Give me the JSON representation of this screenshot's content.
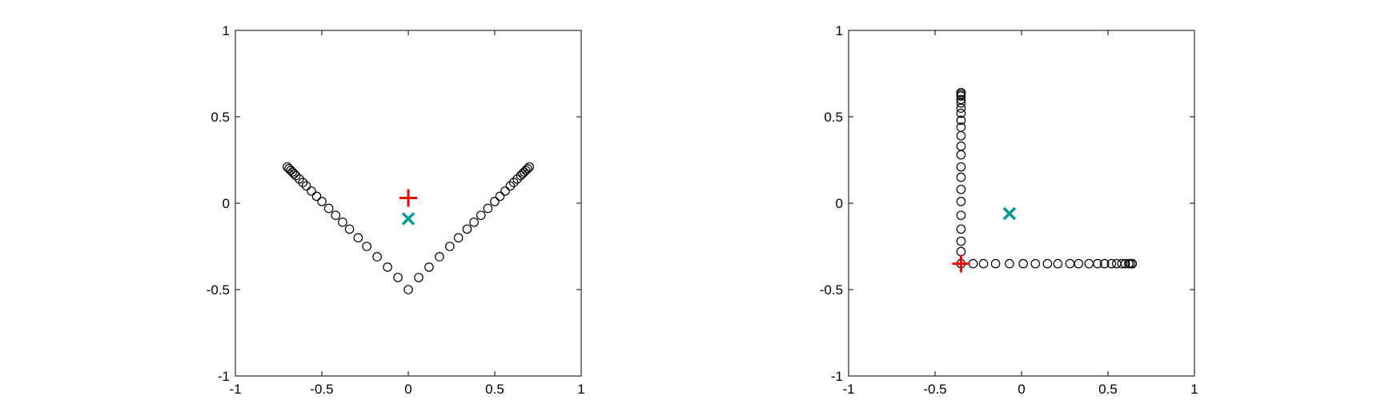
{
  "chart_data": [
    {
      "type": "scatter",
      "xlim": [
        -1,
        1
      ],
      "ylim": [
        -1,
        1
      ],
      "xticks": [
        -1,
        -0.5,
        0,
        0.5,
        1
      ],
      "yticks": [
        -1,
        -0.5,
        0,
        0.5,
        1
      ],
      "xtick_labels": [
        "-1",
        "-0.5",
        "0",
        "0.5",
        "1"
      ],
      "ytick_labels": [
        "-1",
        "-0.5",
        "0",
        "0.5",
        "1"
      ],
      "grid": false,
      "series": [
        {
          "marker": "circle-open",
          "color": "#000000",
          "x": [
            -0.7,
            -0.69,
            -0.68,
            -0.67,
            -0.66,
            -0.65,
            -0.63,
            -0.61,
            -0.59,
            -0.56,
            -0.53,
            -0.5,
            -0.46,
            -0.42,
            -0.38,
            -0.34,
            -0.29,
            -0.24,
            -0.18,
            -0.12,
            -0.06,
            0,
            0.06,
            0.12,
            0.18,
            0.24,
            0.29,
            0.34,
            0.38,
            0.42,
            0.46,
            0.5,
            0.53,
            0.56,
            0.59,
            0.61,
            0.63,
            0.65,
            0.66,
            0.67,
            0.68,
            0.69,
            0.7
          ],
          "y": [
            0.21,
            0.2,
            0.19,
            0.18,
            0.17,
            0.16,
            0.14,
            0.12,
            0.1,
            0.07,
            0.04,
            0.01,
            -0.03,
            -0.07,
            -0.11,
            -0.15,
            -0.2,
            -0.25,
            -0.31,
            -0.37,
            -0.43,
            -0.5,
            -0.43,
            -0.37,
            -0.31,
            -0.25,
            -0.2,
            -0.15,
            -0.11,
            -0.07,
            -0.03,
            0.01,
            0.04,
            0.07,
            0.1,
            0.12,
            0.14,
            0.16,
            0.17,
            0.18,
            0.19,
            0.2,
            0.21
          ]
        },
        {
          "marker": "plus",
          "color": "#ff0000",
          "x": [
            0
          ],
          "y": [
            0.03
          ]
        },
        {
          "marker": "x",
          "color": "#009999",
          "x": [
            0
          ],
          "y": [
            -0.09
          ]
        }
      ]
    },
    {
      "type": "scatter",
      "xlim": [
        -1,
        1
      ],
      "ylim": [
        -1,
        1
      ],
      "xticks": [
        -1,
        -0.5,
        0,
        0.5,
        1
      ],
      "yticks": [
        -1,
        -0.5,
        0,
        0.5,
        1
      ],
      "xtick_labels": [
        "-1",
        "-0.5",
        "0",
        "0.5",
        "1"
      ],
      "ytick_labels": [
        "-1",
        "-0.5",
        "0",
        "0.5",
        "1"
      ],
      "grid": false,
      "series": [
        {
          "marker": "circle-open",
          "color": "#000000",
          "x": [
            -0.35,
            -0.35,
            -0.35,
            -0.35,
            -0.35,
            -0.35,
            -0.35,
            -0.35,
            -0.35,
            -0.35,
            -0.35,
            -0.35,
            -0.35,
            -0.35,
            -0.35,
            -0.35,
            -0.35,
            -0.35,
            -0.35,
            -0.35,
            -0.35,
            -0.35,
            -0.28,
            -0.22,
            -0.15,
            -0.07,
            0.01,
            0.08,
            0.15,
            0.21,
            0.28,
            0.33,
            0.39,
            0.44,
            0.48,
            0.52,
            0.55,
            0.58,
            0.6,
            0.62,
            0.63,
            0.64,
            0.64
          ],
          "y": [
            0.64,
            0.64,
            0.63,
            0.62,
            0.6,
            0.58,
            0.55,
            0.52,
            0.48,
            0.44,
            0.39,
            0.33,
            0.28,
            0.21,
            0.15,
            0.08,
            0.01,
            -0.07,
            -0.15,
            -0.22,
            -0.28,
            -0.35,
            -0.35,
            -0.35,
            -0.35,
            -0.35,
            -0.35,
            -0.35,
            -0.35,
            -0.35,
            -0.35,
            -0.35,
            -0.35,
            -0.35,
            -0.35,
            -0.35,
            -0.35,
            -0.35,
            -0.35,
            -0.35,
            -0.35,
            -0.35,
            -0.35
          ]
        },
        {
          "marker": "plus",
          "color": "#ff0000",
          "x": [
            -0.35
          ],
          "y": [
            -0.35
          ]
        },
        {
          "marker": "x",
          "color": "#009999",
          "x": [
            -0.07
          ],
          "y": [
            -0.06
          ]
        }
      ]
    }
  ]
}
